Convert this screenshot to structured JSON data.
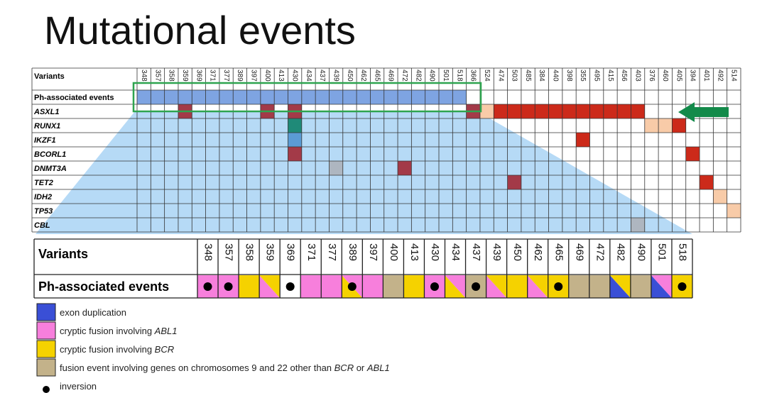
{
  "title": "Mutational events",
  "cell_colors": [
    "#7ea4e2",
    "#cc2a1a",
    "#f8cba8",
    "#a33a48",
    "#1f8a78",
    "#5b9bd5",
    "#aeb6c0"
  ],
  "top_table": {
    "header": "Variants",
    "columns": [
      348,
      357,
      358,
      359,
      369,
      371,
      377,
      389,
      397,
      400,
      413,
      430,
      434,
      437,
      439,
      450,
      462,
      465,
      469,
      472,
      482,
      490,
      501,
      518,
      366,
      524,
      474,
      503,
      485,
      384,
      440,
      398,
      355,
      495,
      415,
      456,
      403,
      376,
      460,
      405,
      394,
      401,
      492,
      514
    ],
    "rows": [
      {
        "label": "Ph-associated events",
        "italic": false,
        "cells": [
          0,
          0,
          0,
          0,
          0,
          0,
          0,
          0,
          0,
          0,
          0,
          0,
          0,
          0,
          0,
          0,
          0,
          0,
          0,
          0,
          0,
          0,
          0,
          0,
          null,
          null,
          null,
          null,
          null,
          null,
          null,
          null,
          null,
          null,
          null,
          null,
          null,
          null,
          null,
          null,
          null,
          null,
          null,
          null
        ]
      },
      {
        "label": "ASXL1",
        "italic": true,
        "cells": [
          null,
          null,
          null,
          3,
          null,
          null,
          null,
          null,
          null,
          3,
          null,
          3,
          null,
          null,
          null,
          null,
          null,
          null,
          null,
          null,
          null,
          null,
          null,
          null,
          3,
          2,
          1,
          1,
          1,
          1,
          1,
          1,
          1,
          1,
          1,
          1,
          1,
          null,
          null,
          null,
          null,
          null,
          null,
          null
        ]
      },
      {
        "label": "RUNX1",
        "italic": true,
        "cells": [
          null,
          null,
          null,
          null,
          null,
          null,
          null,
          null,
          null,
          null,
          null,
          4,
          null,
          null,
          null,
          null,
          null,
          null,
          null,
          null,
          null,
          null,
          null,
          null,
          null,
          null,
          null,
          null,
          null,
          null,
          null,
          null,
          null,
          null,
          null,
          null,
          null,
          2,
          2,
          1,
          null,
          null,
          null,
          null
        ]
      },
      {
        "label": "IKZF1",
        "italic": true,
        "cells": [
          null,
          null,
          null,
          null,
          null,
          null,
          null,
          null,
          null,
          null,
          null,
          5,
          null,
          null,
          null,
          null,
          null,
          null,
          null,
          null,
          null,
          null,
          null,
          null,
          null,
          null,
          null,
          null,
          null,
          null,
          null,
          null,
          1,
          null,
          null,
          null,
          null,
          null,
          null,
          null,
          null,
          null,
          null,
          null
        ]
      },
      {
        "label": "BCORL1",
        "italic": true,
        "cells": [
          null,
          null,
          null,
          null,
          null,
          null,
          null,
          null,
          null,
          null,
          null,
          3,
          null,
          null,
          null,
          null,
          null,
          null,
          null,
          null,
          null,
          null,
          null,
          null,
          null,
          null,
          null,
          null,
          null,
          null,
          null,
          null,
          null,
          null,
          null,
          null,
          null,
          null,
          null,
          null,
          1,
          null,
          null,
          null
        ]
      },
      {
        "label": "DNMT3A",
        "italic": true,
        "cells": [
          null,
          null,
          null,
          null,
          null,
          null,
          null,
          null,
          null,
          null,
          null,
          null,
          null,
          null,
          6,
          null,
          null,
          null,
          null,
          3,
          null,
          null,
          null,
          null,
          null,
          null,
          null,
          null,
          null,
          null,
          null,
          null,
          null,
          null,
          null,
          null,
          null,
          null,
          null,
          null,
          null,
          null,
          null,
          null
        ]
      },
      {
        "label": "TET2",
        "italic": true,
        "cells": [
          null,
          null,
          null,
          null,
          null,
          null,
          null,
          null,
          null,
          null,
          null,
          null,
          null,
          null,
          null,
          null,
          null,
          null,
          null,
          null,
          null,
          null,
          null,
          null,
          null,
          null,
          null,
          3,
          null,
          null,
          null,
          null,
          null,
          null,
          null,
          null,
          null,
          null,
          null,
          null,
          null,
          1,
          null,
          null
        ]
      },
      {
        "label": "IDH2",
        "italic": true,
        "cells": [
          null,
          null,
          null,
          null,
          null,
          null,
          null,
          null,
          null,
          null,
          null,
          null,
          null,
          null,
          null,
          null,
          null,
          null,
          null,
          null,
          null,
          null,
          null,
          null,
          null,
          null,
          null,
          null,
          null,
          null,
          null,
          null,
          null,
          null,
          null,
          null,
          null,
          null,
          null,
          null,
          null,
          null,
          2,
          null
        ]
      },
      {
        "label": "TP53",
        "italic": true,
        "cells": [
          null,
          null,
          null,
          null,
          null,
          null,
          null,
          null,
          null,
          null,
          null,
          null,
          null,
          null,
          null,
          null,
          null,
          null,
          null,
          null,
          null,
          null,
          null,
          null,
          null,
          null,
          null,
          null,
          null,
          null,
          null,
          null,
          null,
          null,
          null,
          null,
          null,
          null,
          null,
          null,
          null,
          null,
          null,
          2
        ]
      },
      {
        "label": "CBL",
        "italic": true,
        "cells": [
          null,
          null,
          null,
          null,
          null,
          null,
          null,
          null,
          null,
          null,
          null,
          null,
          null,
          null,
          null,
          null,
          null,
          null,
          null,
          null,
          null,
          null,
          null,
          null,
          null,
          null,
          null,
          null,
          null,
          null,
          null,
          null,
          null,
          null,
          null,
          null,
          6,
          null,
          null,
          null,
          null,
          null,
          null,
          null
        ]
      }
    ]
  },
  "bottom_table": {
    "header": "Variants",
    "row_label": "Ph-associated events",
    "columns": [
      348,
      357,
      358,
      359,
      369,
      371,
      377,
      389,
      397,
      400,
      413,
      430,
      434,
      437,
      439,
      450,
      462,
      465,
      469,
      472,
      482,
      490,
      501,
      518
    ],
    "events": [
      [
        1,
        4
      ],
      [
        1,
        4
      ],
      [
        2
      ],
      [
        1,
        2
      ],
      [
        4
      ],
      [
        1
      ],
      [
        1
      ],
      [
        2,
        1,
        4
      ],
      [
        1
      ],
      [
        3
      ],
      [
        2
      ],
      [
        1,
        4
      ],
      [
        2,
        1
      ],
      [
        3,
        4
      ],
      [
        1,
        2
      ],
      [
        2
      ],
      [
        1,
        2
      ],
      [
        2,
        4
      ],
      [
        3
      ],
      [
        3
      ],
      [
        0,
        2
      ],
      [
        3
      ],
      [
        0,
        1
      ],
      [
        2,
        4
      ]
    ]
  },
  "legend": [
    {
      "color": "#3a4fd6",
      "parts": [
        {
          "text": "exon duplication"
        }
      ]
    },
    {
      "color": "#f77fdc",
      "parts": [
        {
          "text": "cryptic fusion involving "
        },
        {
          "text": "ABL1",
          "italic": true
        }
      ]
    },
    {
      "color": "#f5d200",
      "parts": [
        {
          "text": "cryptic fusion involving "
        },
        {
          "text": "BCR",
          "italic": true
        }
      ]
    },
    {
      "color": "#c3b28a",
      "parts": [
        {
          "text": "fusion event involving genes  on chromosomes  9 and 22 other than "
        },
        {
          "text": "BCR",
          "italic": true
        },
        {
          "text": " or "
        },
        {
          "text": "ABL1",
          "italic": true
        }
      ]
    },
    {
      "color": "#000000",
      "symbol": "dot",
      "parts": [
        {
          "text": "inversion"
        }
      ]
    }
  ]
}
